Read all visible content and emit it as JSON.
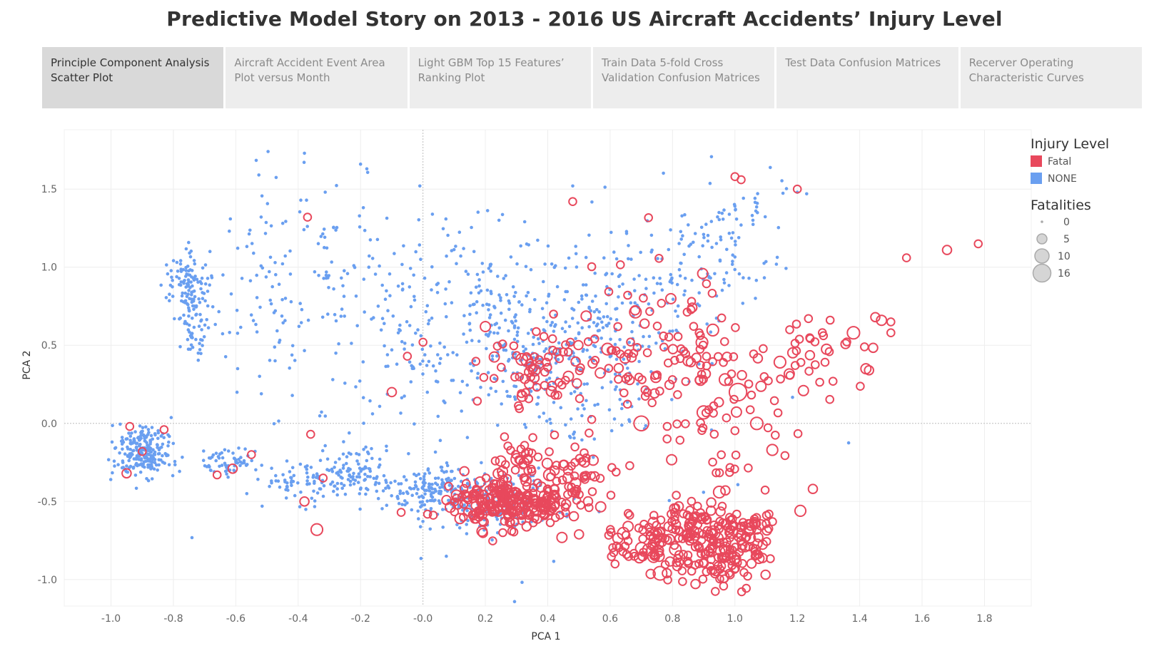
{
  "title": "Predictive Model Story on 2013 - 2016 US Aircraft Accidents’ Injury Level",
  "tabs": [
    {
      "label": "Principle Component Analysis Scatter Plot",
      "active": true
    },
    {
      "label": "Aircraft Accident Event Area Plot versus Month",
      "active": false
    },
    {
      "label": "Light GBM Top 15 Features’ Ranking Plot",
      "active": false
    },
    {
      "label": "Train Data 5-fold Cross Validation Confusion Matrices",
      "active": false
    },
    {
      "label": "Test Data Confusion Matrices",
      "active": false
    },
    {
      "label": "Recerver Operating Characteristic Curves",
      "active": false
    }
  ],
  "colors": {
    "fatal": "#e8485c",
    "none": "#6a9ff0",
    "grid": "#eeeeee",
    "zero": "#bdbdbd"
  },
  "chart_data": {
    "type": "scatter",
    "xlabel": "PCA 1",
    "ylabel": "PCA 2",
    "xlim": [
      -1.15,
      1.95
    ],
    "ylim": [
      -1.17,
      1.88
    ],
    "xticks": [
      -1.0,
      -0.8,
      -0.6,
      -0.4,
      -0.2,
      0.0,
      0.2,
      0.4,
      0.6,
      0.8,
      1.0,
      1.2,
      1.4,
      1.6,
      1.8
    ],
    "xtick_labels": [
      "-1.0",
      "-0.8",
      "-0.6",
      "-0.4",
      "-0.2",
      "-0.0",
      "0.2",
      "0.4",
      "0.6",
      "0.8",
      "1.0",
      "1.2",
      "1.4",
      "1.6",
      "1.8"
    ],
    "yticks": [
      1.5,
      1.0,
      0.5,
      0.0,
      -0.5,
      -1.0
    ],
    "ytick_labels": [
      "1.5",
      "1.0",
      "0.5",
      "0.0",
      "-0.5",
      "-1.0"
    ],
    "grid": true,
    "zero_lines": true,
    "color_legend": {
      "title": "Injury Level",
      "items": [
        {
          "label": "Fatal",
          "key": "fatal"
        },
        {
          "label": "NONE",
          "key": "none"
        }
      ]
    },
    "size_legend": {
      "title": "Fatalities",
      "items": [
        {
          "label": "0",
          "value": 0
        },
        {
          "label": "5",
          "value": 5
        },
        {
          "label": "10",
          "value": 10
        },
        {
          "label": "16",
          "value": 16
        }
      ]
    },
    "legend_position": "top-right",
    "series": [
      {
        "name": "NONE",
        "marker": "filled",
        "clusters": [
          {
            "cx": -0.9,
            "cy": -0.18,
            "sx": 0.045,
            "sy": 0.08,
            "n": 230
          },
          {
            "cx": -0.75,
            "cy": 0.88,
            "sx": 0.035,
            "sy": 0.1,
            "n": 110
          },
          {
            "cx": -0.73,
            "cy": 0.6,
            "sx": 0.03,
            "sy": 0.12,
            "n": 50
          },
          {
            "cx": -0.63,
            "cy": -0.25,
            "sx": 0.05,
            "sy": 0.05,
            "n": 60
          },
          {
            "cx": -0.45,
            "cy": 0.9,
            "sx": 0.1,
            "sy": 0.35,
            "n": 110
          },
          {
            "cx": -0.38,
            "cy": -0.38,
            "sx": 0.06,
            "sy": 0.07,
            "n": 60
          },
          {
            "cx": -0.23,
            "cy": -0.32,
            "sx": 0.07,
            "sy": 0.09,
            "n": 110
          },
          {
            "cx": -0.2,
            "cy": 0.9,
            "sx": 0.08,
            "sy": 0.4,
            "n": 50
          },
          {
            "cx": -0.05,
            "cy": 0.55,
            "sx": 0.08,
            "sy": 0.35,
            "n": 60
          },
          {
            "cx": 0.02,
            "cy": -0.42,
            "sx": 0.06,
            "sy": 0.06,
            "n": 120
          },
          {
            "cx": 0.2,
            "cy": -0.5,
            "sx": 0.1,
            "sy": 0.1,
            "n": 180
          },
          {
            "cx": 0.22,
            "cy": 0.95,
            "sx": 0.12,
            "sy": 0.25,
            "n": 80
          },
          {
            "cx": 0.35,
            "cy": 0.5,
            "sx": 0.15,
            "sy": 0.22,
            "n": 220
          },
          {
            "cx": 0.65,
            "cy": 0.75,
            "sx": 0.15,
            "sy": 0.25,
            "n": 170
          },
          {
            "cx": 0.9,
            "cy": 1.1,
            "sx": 0.12,
            "sy": 0.18,
            "n": 80
          },
          {
            "cx": 1.05,
            "cy": 1.4,
            "sx": 0.08,
            "sy": 0.1,
            "n": 25
          },
          {
            "cx": 0.55,
            "cy": 0.1,
            "sx": 0.12,
            "sy": 0.15,
            "n": 60
          },
          {
            "cx": 0.0,
            "cy": 0.0,
            "sx": 0.6,
            "sy": 0.6,
            "n": 70
          }
        ],
        "points": [
          [
            -0.38,
            1.73
          ],
          [
            -0.2,
            1.66
          ],
          [
            -0.18,
            1.63
          ],
          [
            -0.01,
            1.52
          ],
          [
            0.48,
            1.52
          ],
          [
            1.2,
            1.48
          ],
          [
            1.23,
            1.47
          ]
        ]
      },
      {
        "name": "Fatal",
        "marker": "hollow",
        "clusters": [
          {
            "cx": 0.22,
            "cy": -0.5,
            "sx": 0.08,
            "sy": 0.08,
            "n": 140
          },
          {
            "cx": 0.35,
            "cy": -0.52,
            "sx": 0.06,
            "sy": 0.08,
            "n": 90
          },
          {
            "cx": 0.47,
            "cy": -0.35,
            "sx": 0.08,
            "sy": 0.1,
            "n": 60
          },
          {
            "cx": 0.76,
            "cy": -0.78,
            "sx": 0.1,
            "sy": 0.1,
            "n": 110
          },
          {
            "cx": 0.95,
            "cy": -0.85,
            "sx": 0.07,
            "sy": 0.1,
            "n": 110
          },
          {
            "cx": 1.05,
            "cy": -0.65,
            "sx": 0.05,
            "sy": 0.05,
            "n": 30
          },
          {
            "cx": 0.88,
            "cy": -0.6,
            "sx": 0.07,
            "sy": 0.06,
            "n": 40
          },
          {
            "cx": 0.4,
            "cy": 0.35,
            "sx": 0.12,
            "sy": 0.15,
            "n": 80
          },
          {
            "cx": 0.75,
            "cy": 0.4,
            "sx": 0.12,
            "sy": 0.2,
            "n": 50
          },
          {
            "cx": 0.95,
            "cy": 0.1,
            "sx": 0.12,
            "sy": 0.3,
            "n": 60
          },
          {
            "cx": 1.25,
            "cy": 0.45,
            "sx": 0.1,
            "sy": 0.15,
            "n": 35
          },
          {
            "cx": 0.85,
            "cy": 0.8,
            "sx": 0.12,
            "sy": 0.2,
            "n": 25
          },
          {
            "cx": 0.3,
            "cy": -0.2,
            "sx": 0.05,
            "sy": 0.05,
            "n": 25
          }
        ],
        "points": [
          [
            -0.9,
            -0.18,
            1
          ],
          [
            -0.95,
            -0.32,
            2
          ],
          [
            -0.94,
            -0.02,
            1
          ],
          [
            -0.66,
            -0.33,
            1
          ],
          [
            -0.61,
            -0.29,
            2
          ],
          [
            -0.55,
            -0.2,
            1
          ],
          [
            -0.37,
            1.32,
            1
          ],
          [
            -0.36,
            -0.07,
            1
          ],
          [
            -0.34,
            -0.68,
            5
          ],
          [
            -0.38,
            -0.5,
            2
          ],
          [
            -0.32,
            -0.35,
            1
          ],
          [
            -0.83,
            -0.04,
            1
          ],
          [
            -0.05,
            0.43,
            1
          ],
          [
            -0.1,
            0.2,
            2
          ],
          [
            0.0,
            0.52,
            1
          ],
          [
            -0.07,
            -0.57,
            1
          ],
          [
            0.2,
            0.62,
            3
          ],
          [
            0.48,
            1.42,
            1
          ],
          [
            1.0,
            1.58,
            1
          ],
          [
            1.02,
            1.56,
            1
          ],
          [
            1.2,
            1.5,
            1
          ],
          [
            1.68,
            1.11,
            2
          ],
          [
            1.78,
            1.15,
            1
          ],
          [
            1.55,
            1.06,
            1
          ],
          [
            1.45,
            0.68,
            2
          ],
          [
            1.47,
            0.66,
            3
          ],
          [
            1.5,
            0.65,
            1
          ],
          [
            1.5,
            0.58,
            1
          ],
          [
            1.42,
            0.35,
            3
          ],
          [
            1.43,
            0.34,
            2
          ],
          [
            1.38,
            0.58,
            6
          ],
          [
            1.01,
            0.2,
            16
          ],
          [
            0.85,
            0.4,
            3
          ],
          [
            0.7,
            0.0,
            10
          ],
          [
            0.9,
            0.07,
            7
          ],
          [
            1.07,
            0.0,
            6
          ],
          [
            1.12,
            -0.17,
            4
          ],
          [
            1.21,
            -0.56,
            4
          ],
          [
            1.25,
            -0.42,
            2
          ],
          [
            0.95,
            -0.44,
            5
          ],
          [
            0.93,
            -0.7,
            8
          ],
          [
            0.76,
            -0.96,
            8
          ]
        ]
      }
    ]
  }
}
